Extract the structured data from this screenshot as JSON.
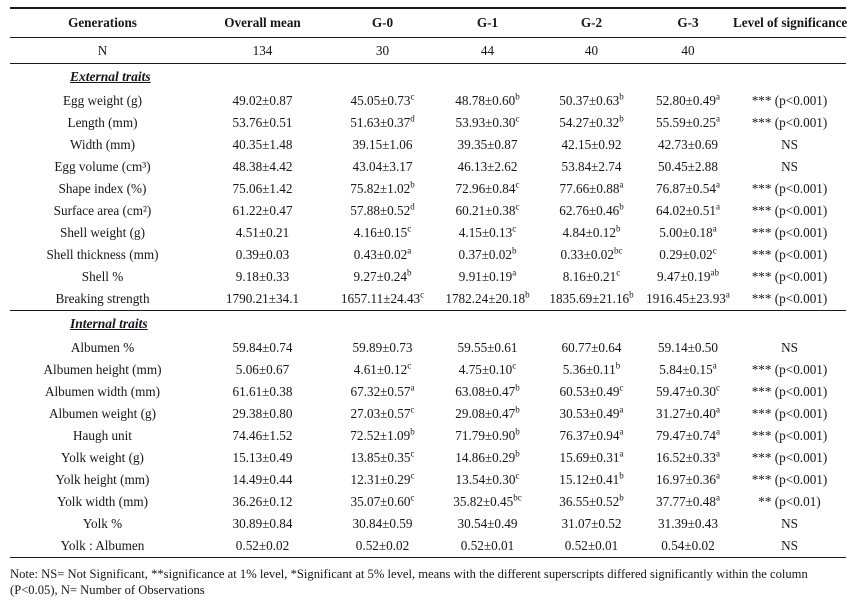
{
  "table": {
    "headers": [
      "Generations",
      "Overall mean",
      "G-0",
      "G-1",
      "G-2",
      "G-3",
      "Level of significance"
    ],
    "n_row": {
      "label": "N",
      "values": [
        "134",
        "30",
        "44",
        "40",
        "40"
      ],
      "sig": ""
    },
    "sections": [
      {
        "title": "External traits",
        "rows": [
          {
            "label": "Egg weight (g)",
            "values": [
              "49.02±0.87",
              "45.05±0.73^c",
              "48.78±0.60^b",
              "50.37±0.63^b",
              "52.80±0.49^a"
            ],
            "sig": "*** (p<0.001)"
          },
          {
            "label": "Length (mm)",
            "values": [
              "53.76±0.51",
              "51.63±0.37^d",
              "53.93±0.30^c",
              "54.27±0.32^b",
              "55.59±0.25^a"
            ],
            "sig": "*** (p<0.001)"
          },
          {
            "label": "Width (mm)",
            "values": [
              "40.35±1.48",
              "39.15±1.06",
              "39.35±0.87",
              "42.15±0.92",
              "42.73±0.69"
            ],
            "sig": "NS"
          },
          {
            "label": "Egg volume (cm³)",
            "values": [
              "48.38±4.42",
              "43.04±3.17",
              "46.13±2.62",
              "53.84±2.74",
              "50.45±2.88"
            ],
            "sig": "NS"
          },
          {
            "label": "Shape index (%)",
            "values": [
              "75.06±1.42",
              "75.82±1.02^b",
              "72.96±0.84^c",
              "77.66±0.88^a",
              "76.87±0.54^a"
            ],
            "sig": "*** (p<0.001)"
          },
          {
            "label": "Surface area (cm²)",
            "values": [
              "61.22±0.47",
              "57.88±0.52^d",
              "60.21±0.38^c",
              "62.76±0.46^b",
              "64.02±0.51^a"
            ],
            "sig": "*** (p<0.001)"
          },
          {
            "label": "Shell weight (g)",
            "values": [
              "4.51±0.21",
              "4.16±0.15^c",
              "4.15±0.13^c",
              "4.84±0.12^b",
              "5.00±0.18^a"
            ],
            "sig": "*** (p<0.001)"
          },
          {
            "label": "Shell thickness (mm)",
            "values": [
              "0.39±0.03",
              "0.43±0.02^a",
              "0.37±0.02^b",
              "0.33±0.02^bc",
              "0.29±0.02^c"
            ],
            "sig": "*** (p<0.001)"
          },
          {
            "label": "Shell %",
            "values": [
              "9.18±0.33",
              "9.27±0.24^b",
              "9.91±0.19^a",
              "8.16±0.21^c",
              "9.47±0.19^ab"
            ],
            "sig": "*** (p<0.001)"
          },
          {
            "label": "Breaking strength",
            "values": [
              "1790.21±34.1",
              "1657.11±24.43^c",
              "1782.24±20.18^b",
              "1835.69±21.16^b",
              "1916.45±23.93^a"
            ],
            "sig": "*** (p<0.001)"
          }
        ]
      },
      {
        "title": "Internal traits",
        "rows": [
          {
            "label": "Albumen %",
            "values": [
              "59.84±0.74",
              "59.89±0.73",
              "59.55±0.61",
              "60.77±0.64",
              "59.14±0.50"
            ],
            "sig": "NS"
          },
          {
            "label": "Albumen height (mm)",
            "values": [
              "5.06±0.67",
              "4.61±0.12^c",
              "4.75±0.10^c",
              "5.36±0.11^b",
              "5.84±0.15^a"
            ],
            "sig": "*** (p<0.001)"
          },
          {
            "label": "Albumen width (mm)",
            "values": [
              "61.61±0.38",
              "67.32±0.57^a",
              "63.08±0.47^b",
              "60.53±0.49^c",
              "59.47±0.30^c"
            ],
            "sig": "*** (p<0.001)"
          },
          {
            "label": "Albumen weight (g)",
            "values": [
              "29.38±0.80",
              "27.03±0.57^c",
              "29.08±0.47^b",
              "30.53±0.49^a",
              "31.27±0.40^a"
            ],
            "sig": "*** (p<0.001)"
          },
          {
            "label": "Haugh unit",
            "values": [
              "74.46±1.52",
              "72.52±1.09^b",
              "71.79±0.90^b",
              "76.37±0.94^a",
              "79.47±0.74^a"
            ],
            "sig": "*** (p<0.001)"
          },
          {
            "label": "Yolk weight (g)",
            "values": [
              "15.13±0.49",
              "13.85±0.35^c",
              "14.86±0.29^b",
              "15.69±0.31^a",
              "16.52±0.33^a"
            ],
            "sig": "*** (p<0.001)"
          },
          {
            "label": "Yolk height (mm)",
            "values": [
              "14.49±0.44",
              "12.31±0.29^c",
              "13.54±0.30^c",
              "15.12±0.41^b",
              "16.97±0.36^a"
            ],
            "sig": "*** (p<0.001)"
          },
          {
            "label": "Yolk width (mm)",
            "values": [
              "36.26±0.12",
              "35.07±0.60^c",
              "35.82±0.45^bc",
              "36.55±0.52^b",
              "37.77±0.48^a"
            ],
            "sig": "** (p<0.01)"
          },
          {
            "label": "Yolk %",
            "values": [
              "30.89±0.84",
              "30.84±0.59",
              "30.54±0.49",
              "31.07±0.52",
              "31.39±0.43"
            ],
            "sig": "NS"
          },
          {
            "label": "Yolk : Albumen",
            "values": [
              "0.52±0.02",
              "0.52±0.02",
              "0.52±0.01",
              "0.52±0.01",
              "0.54±0.02"
            ],
            "sig": "NS"
          }
        ]
      }
    ],
    "note": "Note: NS= Not Significant, **significance at 1% level, *Significant at 5% level, means with the different superscripts differed significantly within the column (P<0.05), N= Number of Observations"
  }
}
